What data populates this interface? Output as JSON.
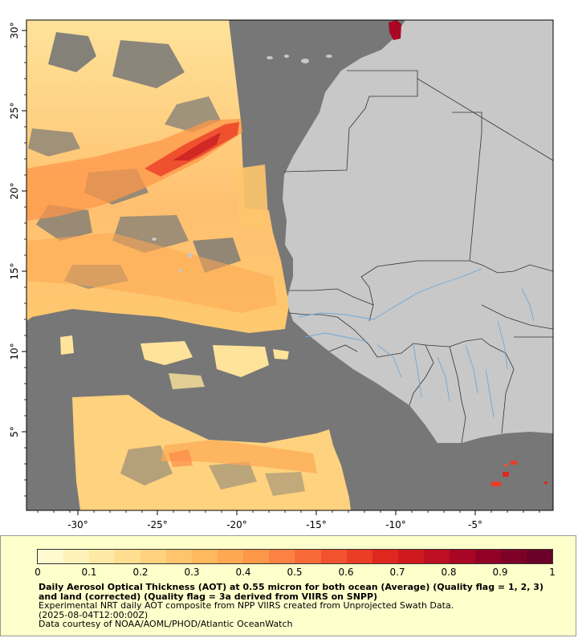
{
  "map": {
    "x_tick_labels": [
      "-30°",
      "-25°",
      "-20°",
      "-15°",
      "-10°",
      "-5°"
    ],
    "y_tick_labels": [
      "30°",
      "25°",
      "20°",
      "15°",
      "10°",
      "5°"
    ],
    "colors": {
      "ocean": "#777777",
      "land": "#c8c8c8",
      "border": "#333333",
      "river": "#6fa8dc",
      "frame": "#000000"
    }
  },
  "legend": {
    "ticks": [
      "0",
      "0.1",
      "0.2",
      "0.3",
      "0.4",
      "0.5",
      "0.6",
      "0.7",
      "0.8",
      "0.9",
      "1"
    ],
    "colors": [
      "#fffad0",
      "#fff2b8",
      "#ffe9a4",
      "#ffde90",
      "#fed27e",
      "#fec56c",
      "#feb85e",
      "#fea852",
      "#fd974a",
      "#fb8242",
      "#f86a38",
      "#f3522e",
      "#eb3c26",
      "#df2720",
      "#d0181f",
      "#bd0e22",
      "#a80624",
      "#920026",
      "#7d0027",
      "#6b0026"
    ]
  },
  "caption": {
    "title": "Daily Aerosol Optical Thickness (AOT) at 0.55 micron for both ocean (Average) (Quality flag = 1, 2, 3) and land (corrected) (Quality flag = 3a derived from VIIRS on SNPP)",
    "line1": "Experimental NRT daily AOT composite from NPP VIIRS created from Unprojected Swath Data.",
    "line2": "(2025-08-04T12:00:00Z)",
    "line3": "Data courtesy of NOAA/AOML/PHOD/Atlantic OceanWatch"
  }
}
